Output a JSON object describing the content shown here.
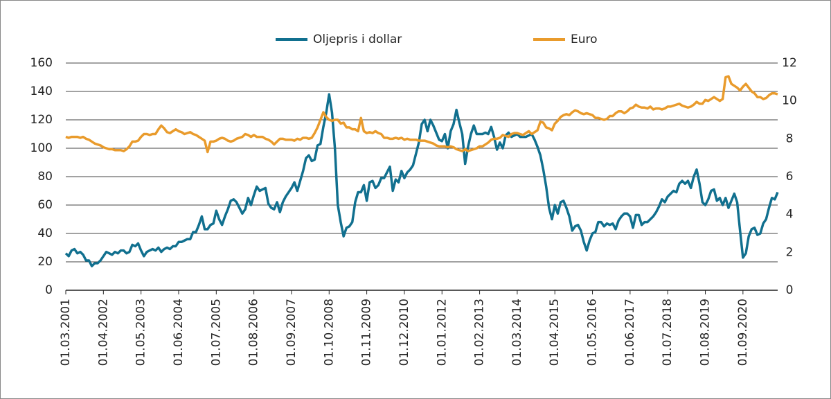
{
  "chart_data": {
    "type": "line",
    "legend": "top",
    "grid": true,
    "categories": [
      "01.03.2001",
      null,
      null,
      null,
      null,
      null,
      null,
      null,
      null,
      null,
      null,
      null,
      null,
      "01.04.2002",
      null,
      null,
      null,
      null,
      null,
      null,
      null,
      null,
      null,
      null,
      null,
      null,
      "01.05.2003",
      null,
      null,
      null,
      null,
      null,
      null,
      null,
      null,
      null,
      null,
      null,
      null,
      "01.06.2004",
      null,
      null,
      null,
      null,
      null,
      null,
      null,
      null,
      null,
      null,
      null,
      null,
      "01.07.2005",
      null,
      null,
      null,
      null,
      null,
      null,
      null,
      null,
      null,
      null,
      null,
      null,
      "01.08.2006",
      null,
      null,
      null,
      null,
      null,
      null,
      null,
      null,
      null,
      null,
      null,
      null,
      "01.09.2007",
      null,
      null,
      null,
      null,
      null,
      null,
      null,
      null,
      null,
      null,
      null,
      null,
      "01.10.2008",
      null,
      null,
      null,
      null,
      null,
      null,
      null,
      null,
      null,
      null,
      null,
      null,
      "01.11.2009",
      null,
      null,
      null,
      null,
      null,
      null,
      null,
      null,
      null,
      null,
      null,
      null,
      "01.12.2010",
      null,
      null,
      null,
      null,
      null,
      null,
      null,
      null,
      null,
      null,
      null,
      null,
      "01.01.2012",
      null,
      null,
      null,
      null,
      null,
      null,
      null,
      null,
      null,
      null,
      null,
      null,
      "01.02.2013",
      null,
      null,
      null,
      null,
      null,
      null,
      null,
      null,
      null,
      null,
      null,
      null,
      "01.03.2014",
      null,
      null,
      null,
      null,
      null,
      null,
      null,
      null,
      null,
      null,
      null,
      null,
      "01.04.2015",
      null,
      null,
      null,
      null,
      null,
      null,
      null,
      null,
      null,
      null,
      null,
      null,
      "01.05.2016",
      null,
      null,
      null,
      null,
      null,
      null,
      null,
      null,
      null,
      null,
      null,
      null,
      "01.06.2017",
      null,
      null,
      null,
      null,
      null,
      null,
      null,
      null,
      null,
      null,
      null,
      null,
      "01.07.2018",
      null,
      null,
      null,
      null,
      null,
      null,
      null,
      null,
      null,
      null,
      null,
      null,
      "01.08.2019",
      null,
      null,
      null,
      null,
      null,
      null,
      null,
      null,
      null,
      null,
      null,
      null,
      "01.09.2020",
      null,
      null,
      null,
      null,
      null,
      null,
      null,
      null,
      null,
      null,
      null,
      null
    ],
    "series": [
      {
        "name": "Oljepris i dollar",
        "color": "#11708f",
        "axis": "y",
        "values": [
          26,
          24,
          28,
          29,
          26,
          27,
          25,
          21,
          21,
          17,
          19,
          19,
          21,
          24,
          27,
          26,
          25,
          27,
          26,
          28,
          28,
          26,
          27,
          32,
          31,
          33,
          28,
          24,
          27,
          28,
          29,
          28,
          30,
          27,
          29,
          30,
          29,
          31,
          31,
          34,
          34,
          35,
          36,
          36,
          41,
          41,
          46,
          52,
          43,
          43,
          46,
          47,
          56,
          50,
          46,
          52,
          57,
          63,
          64,
          62,
          58,
          54,
          57,
          65,
          60,
          67,
          73,
          70,
          71,
          72,
          61,
          58,
          57,
          62,
          55,
          62,
          66,
          69,
          72,
          76,
          70,
          77,
          84,
          93,
          95,
          91,
          92,
          102,
          103,
          115,
          125,
          138,
          125,
          100,
          60,
          48,
          38,
          44,
          45,
          48,
          62,
          69,
          69,
          74,
          63,
          76,
          77,
          72,
          74,
          79,
          79,
          83,
          87,
          70,
          78,
          76,
          84,
          79,
          83,
          85,
          88,
          96,
          104,
          117,
          120,
          112,
          120,
          116,
          111,
          106,
          105,
          110,
          100,
          112,
          117,
          127,
          118,
          110,
          89,
          101,
          110,
          116,
          110,
          110,
          110,
          111,
          110,
          115,
          108,
          99,
          104,
          100,
          109,
          111,
          108,
          109,
          110,
          108,
          108,
          108,
          109,
          110,
          106,
          101,
          95,
          85,
          73,
          58,
          50,
          60,
          54,
          62,
          63,
          58,
          52,
          42,
          45,
          46,
          42,
          34,
          28,
          35,
          40,
          41,
          48,
          48,
          45,
          47,
          46,
          47,
          43,
          49,
          52,
          54,
          54,
          52,
          44,
          53,
          53,
          46,
          48,
          48,
          50,
          52,
          55,
          59,
          64,
          62,
          66,
          68,
          70,
          69,
          75,
          77,
          75,
          77,
          72,
          80,
          85,
          75,
          62,
          60,
          64,
          70,
          71,
          63,
          65,
          60,
          65,
          58,
          63,
          68,
          62,
          42,
          23,
          26,
          38,
          43,
          44,
          39,
          40,
          47,
          50,
          58,
          65,
          64,
          69
        ]
      },
      {
        "name": "Euro",
        "color": "#e99b2c",
        "axis": "y2",
        "values": [
          8.1,
          8.05,
          8.1,
          8.1,
          8.1,
          8.05,
          8.1,
          8.0,
          7.95,
          7.85,
          7.75,
          7.7,
          7.65,
          7.55,
          7.5,
          7.45,
          7.45,
          7.4,
          7.4,
          7.4,
          7.35,
          7.45,
          7.6,
          7.85,
          7.85,
          7.9,
          8.1,
          8.25,
          8.25,
          8.2,
          8.25,
          8.25,
          8.5,
          8.7,
          8.55,
          8.35,
          8.3,
          8.4,
          8.5,
          8.4,
          8.35,
          8.25,
          8.3,
          8.35,
          8.25,
          8.2,
          8.1,
          8.0,
          7.9,
          7.3,
          7.85,
          7.85,
          7.9,
          8.0,
          8.05,
          8.0,
          7.9,
          7.85,
          7.9,
          8.0,
          8.05,
          8.1,
          8.25,
          8.2,
          8.1,
          8.2,
          8.1,
          8.1,
          8.1,
          8.0,
          7.95,
          7.85,
          7.7,
          7.85,
          8.0,
          8.0,
          7.95,
          7.95,
          7.95,
          7.9,
          8.0,
          7.95,
          8.05,
          8.05,
          8.0,
          8.05,
          8.3,
          8.6,
          9.0,
          9.4,
          9.15,
          9.0,
          8.95,
          9.0,
          9.0,
          8.8,
          8.85,
          8.6,
          8.6,
          8.5,
          8.5,
          8.4,
          9.1,
          8.4,
          8.3,
          8.35,
          8.3,
          8.4,
          8.3,
          8.25,
          8.05,
          8.05,
          8.0,
          8.0,
          8.05,
          8.0,
          8.05,
          7.95,
          8.0,
          7.95,
          7.95,
          7.95,
          7.9,
          7.9,
          7.9,
          7.85,
          7.8,
          7.75,
          7.65,
          7.6,
          7.6,
          7.6,
          7.55,
          7.6,
          7.55,
          7.45,
          7.4,
          7.35,
          7.45,
          7.35,
          7.4,
          7.45,
          7.5,
          7.6,
          7.6,
          7.7,
          7.8,
          7.95,
          8.0,
          8.0,
          8.05,
          8.2,
          8.15,
          8.1,
          8.25,
          8.3,
          8.3,
          8.25,
          8.2,
          8.3,
          8.4,
          8.25,
          8.35,
          8.45,
          8.9,
          8.85,
          8.6,
          8.55,
          8.45,
          8.8,
          8.95,
          9.15,
          9.25,
          9.3,
          9.25,
          9.4,
          9.5,
          9.45,
          9.35,
          9.3,
          9.35,
          9.3,
          9.25,
          9.1,
          9.1,
          9.05,
          9.0,
          9.05,
          9.2,
          9.2,
          9.35,
          9.45,
          9.45,
          9.35,
          9.45,
          9.6,
          9.65,
          9.8,
          9.7,
          9.65,
          9.65,
          9.6,
          9.7,
          9.55,
          9.6,
          9.6,
          9.55,
          9.6,
          9.7,
          9.7,
          9.75,
          9.8,
          9.85,
          9.75,
          9.7,
          9.65,
          9.7,
          9.8,
          9.95,
          9.85,
          9.85,
          10.05,
          10.0,
          10.1,
          10.2,
          10.1,
          10.0,
          10.1,
          11.25,
          11.3,
          10.9,
          10.8,
          10.7,
          10.55,
          10.75,
          10.9,
          10.7,
          10.5,
          10.4,
          10.2,
          10.2,
          10.1,
          10.15,
          10.3,
          10.4,
          10.4,
          10.35
        ]
      }
    ],
    "ylim": [
      0,
      160
    ],
    "yticks": [
      0,
      20,
      40,
      60,
      80,
      100,
      120,
      140,
      160
    ],
    "y2lim": [
      0,
      12
    ],
    "y2ticks": [
      0,
      2,
      4,
      6,
      8,
      10,
      12
    ]
  }
}
